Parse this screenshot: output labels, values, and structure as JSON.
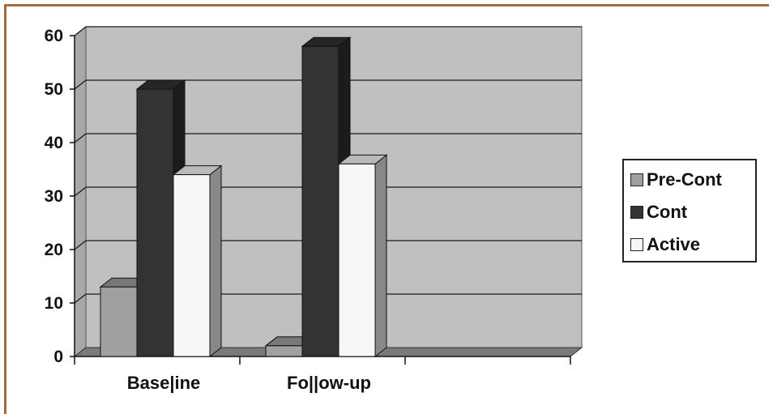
{
  "chart_data": {
    "type": "bar",
    "categories": [
      "Base|ine",
      "Fo||ow-up"
    ],
    "series": [
      {
        "name": "Pre-Cont",
        "values": [
          13,
          2
        ],
        "color": "#a0a0a0"
      },
      {
        "name": "Cont",
        "values": [
          50,
          58
        ],
        "color": "#333333"
      },
      {
        "name": "Active",
        "values": [
          34,
          36
        ],
        "color": "#f7f7f7"
      }
    ],
    "ylim": [
      0,
      60
    ],
    "yticks": [
      "0",
      "10",
      "20",
      "30",
      "40",
      "50",
      "60"
    ],
    "grid": true,
    "legend_position": "right",
    "plot_background": "#c0c0c0",
    "three_d": true
  }
}
